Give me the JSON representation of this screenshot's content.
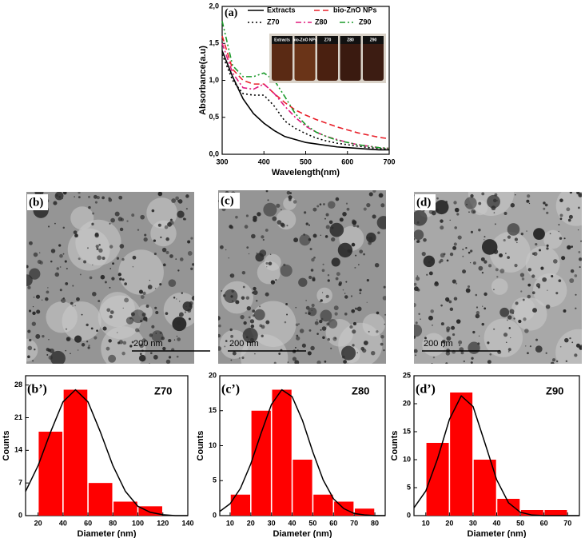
{
  "chart_data": [
    {
      "type": "line",
      "panel_label": "(a)",
      "xlabel": "Wavelength(nm)",
      "ylabel": "Absorbance(a.u)",
      "x": [
        300,
        325,
        350,
        375,
        400,
        425,
        450,
        475,
        500,
        525,
        550,
        575,
        600,
        625,
        650,
        675,
        700
      ],
      "xlim": [
        300,
        700
      ],
      "xticks": [
        300,
        400,
        500,
        600,
        700
      ],
      "ylim": [
        0,
        2
      ],
      "yticks": [
        {
          "value": 0,
          "label": "0,0"
        },
        {
          "value": 0.5,
          "label": "0,5"
        },
        {
          "value": 1,
          "label": "1,0"
        },
        {
          "value": 1.5,
          "label": "1,5"
        },
        {
          "value": 2,
          "label": "2,0"
        }
      ],
      "legend": "upper right",
      "inset_labels": [
        "Extracts",
        "bio-ZnO NPs",
        "Z70",
        "Z80",
        "Z90"
      ],
      "series": [
        {
          "name": "Extracts",
          "color": "#000000",
          "style": "solid",
          "values": [
            1.4,
            1.05,
            0.75,
            0.55,
            0.42,
            0.32,
            0.24,
            0.2,
            0.16,
            0.14,
            0.12,
            0.1,
            0.09,
            0.08,
            0.07,
            0.06,
            0.06
          ]
        },
        {
          "name": "bio-ZnO NPs",
          "color": "#e8202a",
          "style": "dashed",
          "values": [
            1.6,
            1.15,
            1.0,
            0.95,
            0.95,
            0.82,
            0.7,
            0.6,
            0.53,
            0.47,
            0.42,
            0.37,
            0.33,
            0.29,
            0.26,
            0.23,
            0.21
          ]
        },
        {
          "name": "Z70",
          "color": "#000000",
          "style": "dotted",
          "values": [
            1.35,
            1.0,
            0.82,
            0.8,
            0.8,
            0.65,
            0.45,
            0.35,
            0.28,
            0.22,
            0.18,
            0.15,
            0.13,
            0.11,
            0.09,
            0.08,
            0.07
          ]
        },
        {
          "name": "Z80",
          "color": "#e0197d",
          "style": "dashdot",
          "values": [
            1.5,
            1.1,
            0.9,
            0.88,
            0.95,
            0.82,
            0.65,
            0.5,
            0.38,
            0.3,
            0.24,
            0.2,
            0.16,
            0.13,
            0.11,
            0.09,
            0.08
          ]
        },
        {
          "name": "Z90",
          "color": "#1a9a2a",
          "style": "dashdotdot",
          "values": [
            1.8,
            1.2,
            1.05,
            1.05,
            1.1,
            1.0,
            0.78,
            0.55,
            0.4,
            0.3,
            0.24,
            0.19,
            0.16,
            0.13,
            0.11,
            0.09,
            0.08
          ]
        }
      ]
    },
    {
      "type": "histogram",
      "panel_label": "(b’)",
      "annotation": "Z70",
      "xlabel": "Diameter (nm)",
      "ylabel": "Counts",
      "bins": [
        20,
        40,
        60,
        80,
        100,
        120
      ],
      "counts": [
        18,
        27,
        7,
        3,
        2
      ],
      "color": "#ff0000",
      "xlim": [
        10,
        140
      ],
      "xticks": [
        20,
        40,
        60,
        80,
        100,
        120,
        140
      ],
      "ylim": [
        0,
        30
      ],
      "yticks": [
        0,
        7,
        14,
        21,
        28
      ],
      "fit": {
        "color": "#000000",
        "x": [
          10,
          20,
          30,
          40,
          50,
          60,
          70,
          80,
          90,
          100,
          110,
          120,
          130,
          140
        ],
        "y": [
          5.2,
          10.7,
          17.9,
          24.4,
          27,
          24.4,
          17.9,
          10.7,
          5.2,
          2.0,
          0.7,
          0.2,
          0,
          0
        ]
      }
    },
    {
      "type": "histogram",
      "panel_label": "(c’)",
      "annotation": "Z80",
      "xlabel": "Diameter (nm)",
      "ylabel": "Counts",
      "bins": [
        10,
        20,
        30,
        40,
        50,
        60,
        70,
        80
      ],
      "counts": [
        3,
        15,
        18,
        8,
        3,
        2,
        1
      ],
      "color": "#ff0000",
      "xlim": [
        5,
        85
      ],
      "xticks": [
        10,
        20,
        30,
        40,
        50,
        60,
        70,
        80
      ],
      "ylim": [
        0,
        20
      ],
      "yticks": [
        0,
        5,
        10,
        15,
        20
      ],
      "fit": {
        "color": "#000000",
        "x": [
          5,
          10,
          15,
          20,
          25,
          30,
          35,
          40,
          45,
          50,
          55,
          60,
          65,
          70,
          75,
          80,
          85
        ],
        "y": [
          0.6,
          1.7,
          3.9,
          7.4,
          11.8,
          15.9,
          18,
          17,
          13.6,
          9.1,
          5.1,
          2.4,
          1,
          0.3,
          0.1,
          0,
          0
        ]
      }
    },
    {
      "type": "histogram",
      "panel_label": "(d’)",
      "annotation": "Z90",
      "xlabel": "Diameter (nm)",
      "ylabel": "Counts",
      "bins": [
        10,
        20,
        30,
        40,
        50,
        60,
        70
      ],
      "counts": [
        13,
        22,
        10,
        3,
        1,
        1
      ],
      "color": "#ff0000",
      "xlim": [
        5,
        75
      ],
      "xticks": [
        10,
        20,
        30,
        40,
        50,
        60,
        70
      ],
      "ylim": [
        0,
        25
      ],
      "yticks": [
        0,
        5,
        10,
        15,
        20,
        25
      ],
      "fit": {
        "color": "#000000",
        "x": [
          5,
          10,
          15,
          20,
          25,
          30,
          35,
          40,
          45,
          50,
          55,
          60,
          65,
          70,
          75
        ],
        "y": [
          1.4,
          4.4,
          10.2,
          17.2,
          21.4,
          19.5,
          13.0,
          6.4,
          2.3,
          0.6,
          0.1,
          0,
          0,
          0,
          0
        ]
      }
    }
  ],
  "images": [
    {
      "panel_label": "(b)",
      "scale_bar": "200 nm"
    },
    {
      "panel_label": "(c)",
      "scale_bar": "200 nm"
    },
    {
      "panel_label": "(d)",
      "scale_bar": "200 nm"
    }
  ]
}
